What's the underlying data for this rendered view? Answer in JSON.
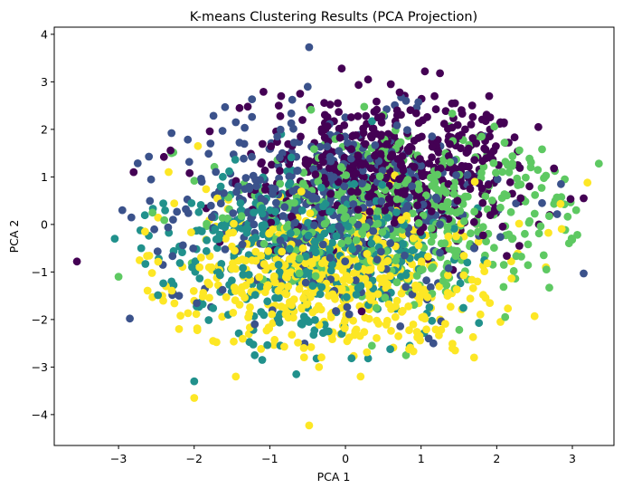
{
  "chart_data": {
    "type": "scatter",
    "title": "K-means Clustering Results (PCA Projection)",
    "xlabel": "PCA 1",
    "ylabel": "PCA 2",
    "xlim": [
      -3.85,
      3.55
    ],
    "ylim": [
      -4.65,
      4.15
    ],
    "x_ticks": [
      -3,
      -2,
      -1,
      0,
      1,
      2,
      3
    ],
    "y_ticks": [
      -4,
      -3,
      -2,
      -1,
      0,
      1,
      2,
      3,
      4
    ],
    "grid": false,
    "legend": "none",
    "colormap": "viridis",
    "clusters": [
      {
        "color": "#440154",
        "center": [
          0.55,
          1.2
        ],
        "spread": [
          0.95,
          0.75
        ],
        "count": 520,
        "points": [
          [
            -3.55,
            -0.78
          ],
          [
            -0.05,
            3.28
          ],
          [
            1.05,
            3.22
          ],
          [
            1.25,
            3.18
          ],
          [
            2.05,
            2.15
          ],
          [
            2.55,
            2.05
          ],
          [
            3.15,
            0.55
          ],
          [
            2.7,
            0.2
          ],
          [
            -2.4,
            1.42
          ],
          [
            -0.85,
            2.7
          ],
          [
            0.6,
            2.95
          ],
          [
            -2.8,
            1.1
          ],
          [
            1.7,
            0.05
          ],
          [
            2.3,
            -0.45
          ],
          [
            1.9,
            2.7
          ],
          [
            0.3,
            3.05
          ],
          [
            -0.6,
            2.75
          ],
          [
            -1.4,
            2.45
          ]
        ]
      },
      {
        "color": "#3b528b",
        "center": [
          -0.2,
          0.35
        ],
        "spread": [
          1.0,
          0.95
        ],
        "count": 480,
        "points": [
          [
            -0.48,
            3.73
          ],
          [
            3.15,
            -1.03
          ],
          [
            -2.85,
            -1.98
          ],
          [
            -1.45,
            2.15
          ],
          [
            2.85,
            0.85
          ],
          [
            -2.2,
            -1.5
          ],
          [
            1.1,
            -2.4
          ],
          [
            -1.9,
            0.9
          ],
          [
            -2.95,
            0.3
          ],
          [
            0.8,
            2.6
          ],
          [
            2.6,
            0.45
          ],
          [
            -1.2,
            -2.1
          ]
        ]
      },
      {
        "color": "#21918c",
        "center": [
          -0.45,
          -0.55
        ],
        "spread": [
          0.95,
          0.85
        ],
        "count": 420,
        "points": [
          [
            -2.0,
            -3.3
          ],
          [
            -0.65,
            -3.15
          ],
          [
            -1.1,
            -2.85
          ],
          [
            -3.05,
            -0.3
          ],
          [
            -0.05,
            -2.3
          ],
          [
            -2.7,
            -0.5
          ],
          [
            -1.2,
            -2.75
          ],
          [
            -1.55,
            -1.9
          ],
          [
            0.85,
            -2.55
          ],
          [
            -2.3,
            -1.2
          ],
          [
            -0.85,
            1.9
          ]
        ]
      },
      {
        "color": "#5ec962",
        "center": [
          0.75,
          0.3
        ],
        "spread": [
          1.05,
          0.85
        ],
        "count": 480,
        "points": [
          [
            3.35,
            1.28
          ],
          [
            -3.0,
            -1.1
          ],
          [
            2.6,
            1.58
          ],
          [
            1.8,
            1.85
          ],
          [
            2.9,
            0.95
          ],
          [
            3.05,
            0.3
          ],
          [
            -2.3,
            1.5
          ],
          [
            0.35,
            -2.55
          ],
          [
            0.8,
            -2.75
          ],
          [
            -2.55,
            0.25
          ],
          [
            2.45,
            1.2
          ],
          [
            0.5,
            2.3
          ]
        ]
      },
      {
        "color": "#fde725",
        "center": [
          -0.2,
          -1.05
        ],
        "spread": [
          1.05,
          0.75
        ],
        "count": 560,
        "points": [
          [
            -0.48,
            -4.23
          ],
          [
            -2.0,
            -3.65
          ],
          [
            0.2,
            -3.2
          ],
          [
            -1.45,
            -3.2
          ],
          [
            1.45,
            -2.65
          ],
          [
            1.7,
            -2.8
          ],
          [
            2.5,
            -1.93
          ],
          [
            2.65,
            -0.9
          ],
          [
            3.2,
            0.88
          ],
          [
            -2.2,
            -2.2
          ],
          [
            -1.75,
            -2.45
          ],
          [
            -0.55,
            -2.6
          ],
          [
            -0.35,
            -3.0
          ],
          [
            0.7,
            -2.35
          ],
          [
            2.05,
            -2.05
          ],
          [
            -2.65,
            -0.15
          ],
          [
            -1.95,
            1.65
          ],
          [
            1.25,
            -2.0
          ]
        ]
      }
    ]
  }
}
